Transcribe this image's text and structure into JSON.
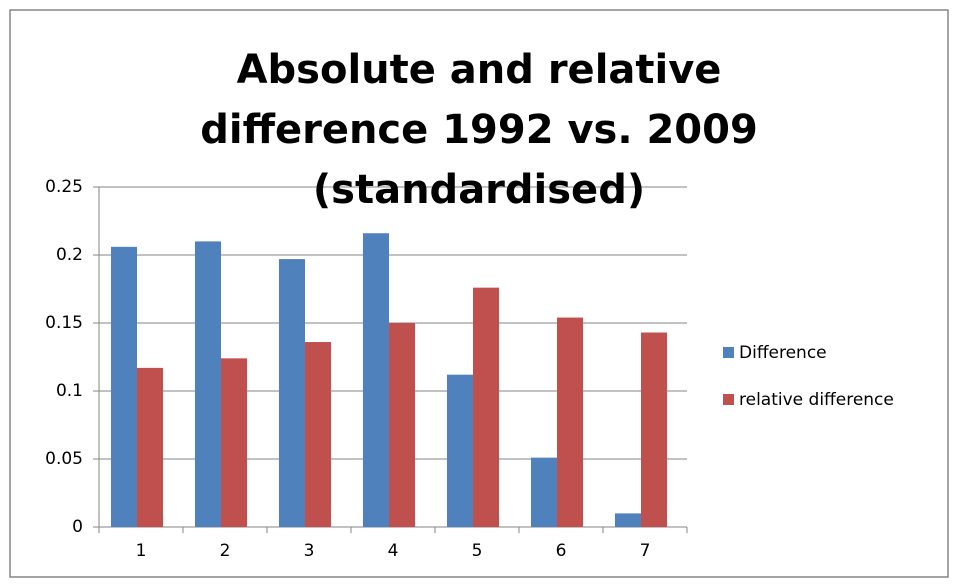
{
  "chart_data": {
    "type": "bar",
    "title": "Absolute and relative difference 1992 vs. 2009 (standardised)",
    "categories": [
      "1",
      "2",
      "3",
      "4",
      "5",
      "6",
      "7"
    ],
    "series": [
      {
        "name": "Difference",
        "color": "#4f81bd",
        "values": [
          0.206,
          0.21,
          0.197,
          0.216,
          0.112,
          0.051,
          0.01
        ]
      },
      {
        "name": "relative difference",
        "color": "#c0504d",
        "values": [
          0.117,
          0.124,
          0.136,
          0.15,
          0.176,
          0.154,
          0.143
        ]
      }
    ],
    "ylim": [
      0,
      0.25
    ],
    "yticks": [
      0,
      0.05,
      0.1,
      0.15,
      0.2,
      0.25
    ],
    "grid": true,
    "legend": "right"
  }
}
